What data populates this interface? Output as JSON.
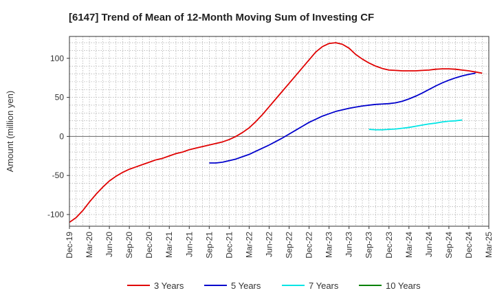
{
  "chart_data": {
    "type": "line",
    "title": "[6147]  Trend of Mean of 12-Month Moving Sum of Investing CF",
    "xlabel": "",
    "ylabel": "Amount (million yen)",
    "ylim": [
      -115,
      128
    ],
    "yticks": [
      100,
      50,
      0,
      -50,
      -100
    ],
    "x_tick_labels": [
      "Dec-19",
      "Mar-20",
      "Jun-20",
      "Sep-20",
      "Dec-20",
      "Mar-21",
      "Jun-21",
      "Sep-21",
      "Dec-21",
      "Mar-22",
      "Jun-22",
      "Sep-22",
      "Dec-22",
      "Mar-23",
      "Jun-23",
      "Sep-23",
      "Dec-23",
      "Mar-24",
      "Jun-24",
      "Sep-24",
      "Dec-24",
      "Mar-25"
    ],
    "x_dates": [
      "2019-12",
      "2020-01",
      "2020-02",
      "2020-03",
      "2020-04",
      "2020-05",
      "2020-06",
      "2020-07",
      "2020-08",
      "2020-09",
      "2020-10",
      "2020-11",
      "2020-12",
      "2021-01",
      "2021-02",
      "2021-03",
      "2021-04",
      "2021-05",
      "2021-06",
      "2021-07",
      "2021-08",
      "2021-09",
      "2021-10",
      "2021-11",
      "2021-12",
      "2022-01",
      "2022-02",
      "2022-03",
      "2022-04",
      "2022-05",
      "2022-06",
      "2022-07",
      "2022-08",
      "2022-09",
      "2022-10",
      "2022-11",
      "2022-12",
      "2023-01",
      "2023-02",
      "2023-03",
      "2023-04",
      "2023-05",
      "2023-06",
      "2023-07",
      "2023-08",
      "2023-09",
      "2023-10",
      "2023-11",
      "2023-12",
      "2024-01",
      "2024-02",
      "2024-03",
      "2024-04",
      "2024-05",
      "2024-06",
      "2024-07",
      "2024-08",
      "2024-09",
      "2024-10",
      "2024-11",
      "2024-12",
      "2025-01",
      "2025-02",
      "2025-03"
    ],
    "grid": true,
    "legend_position": "bottom",
    "series": [
      {
        "name": "3 Years",
        "color": "#e00000",
        "start": "2019-12",
        "values": [
          -110,
          -104,
          -95,
          -84,
          -74,
          -65,
          -57,
          -51,
          -46,
          -42,
          -39,
          -36,
          -33,
          -30,
          -28,
          -25,
          -22,
          -20,
          -17,
          -15,
          -13,
          -11,
          -9,
          -7,
          -4,
          0,
          5,
          11,
          19,
          28,
          38,
          48,
          58,
          68,
          78,
          88,
          98,
          108,
          115,
          119,
          120,
          118,
          113,
          105,
          99,
          94,
          90,
          87,
          85,
          84.5,
          84,
          84,
          84,
          84.5,
          85,
          86,
          86.5,
          86.5,
          86,
          85,
          84,
          82.5,
          81
        ]
      },
      {
        "name": "5 Years",
        "color": "#0000cc",
        "start": "2021-09",
        "values": [
          -34,
          -34,
          -33,
          -31,
          -29,
          -26,
          -23,
          -19,
          -15,
          -11,
          -6.5,
          -2,
          3,
          8,
          13,
          18,
          22,
          26,
          29,
          32,
          34,
          36,
          37.5,
          39,
          40,
          41,
          41.5,
          42,
          43,
          45,
          48,
          51.5,
          55.5,
          60,
          64.5,
          68.5,
          72,
          75,
          77.5,
          79.5,
          81
        ]
      },
      {
        "name": "7 Years",
        "color": "#00e5e5",
        "start": "2023-09",
        "values": [
          9,
          8.5,
          8.5,
          9,
          9.5,
          10.5,
          11.5,
          13,
          14.5,
          16,
          17,
          18.5,
          19.5,
          20,
          21
        ]
      },
      {
        "name": "10 Years",
        "color": "#008000",
        "start": "2024-09",
        "values": []
      }
    ]
  }
}
